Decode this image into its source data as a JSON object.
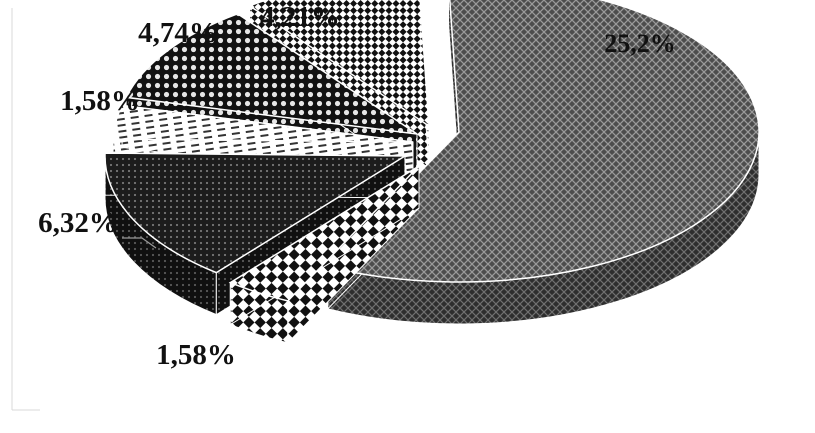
{
  "chart_data": {
    "type": "pie",
    "style": "3d-exploded",
    "title": "",
    "legend": "none",
    "slices": [
      {
        "label": "25,2%",
        "value": 25.2,
        "pattern": "crosshatch-gray"
      },
      {
        "label": "1,58%",
        "value": 1.58,
        "pattern": "checker-large"
      },
      {
        "label": "6,32%",
        "value": 6.32,
        "pattern": "dots-dark"
      },
      {
        "label": "1,58%",
        "value": 1.58,
        "pattern": "dashes-light"
      },
      {
        "label": "4,74%",
        "value": 4.74,
        "pattern": "dots-white-on-black"
      },
      {
        "label": "4,21%",
        "value": 4.21,
        "pattern": "checker-small"
      }
    ]
  }
}
